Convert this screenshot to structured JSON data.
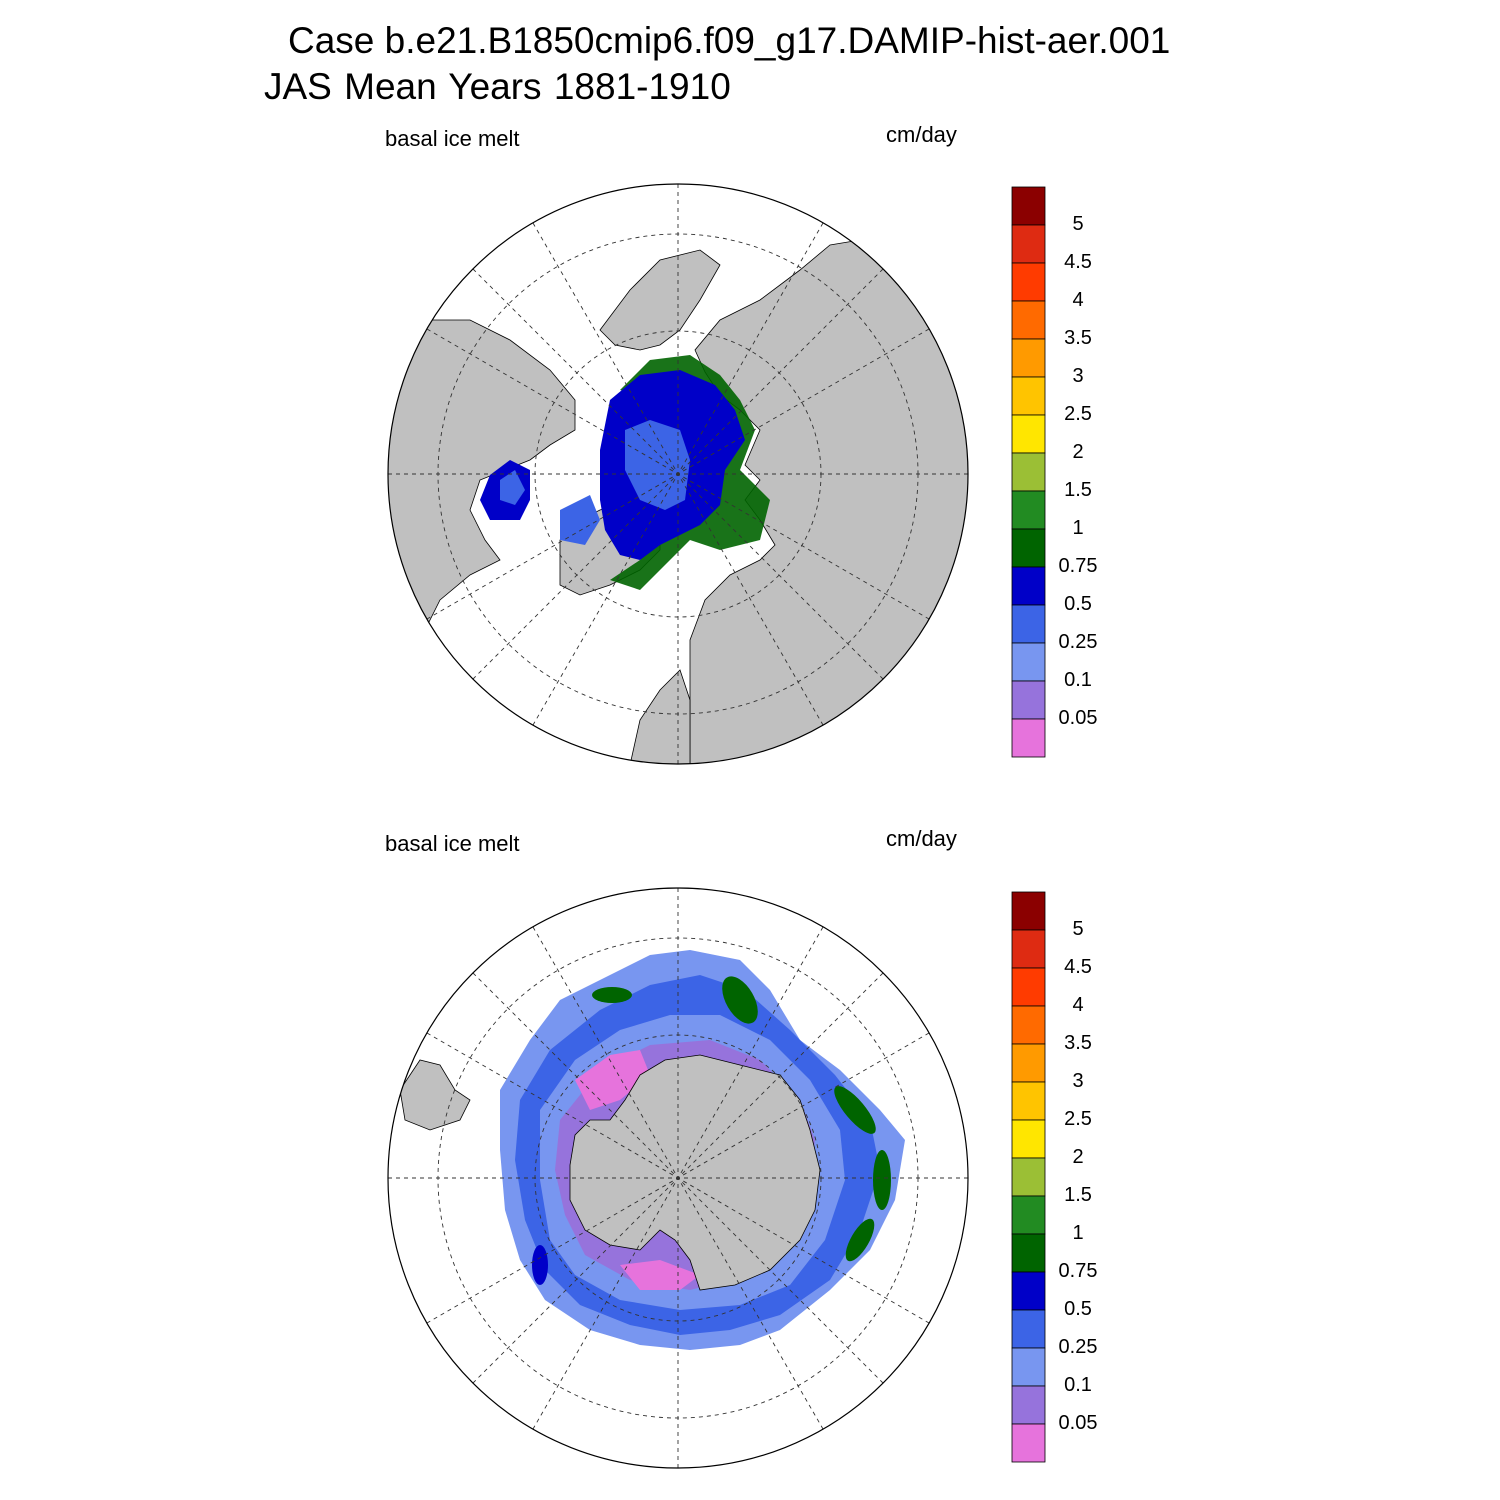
{
  "title": {
    "line1": "Case b.e21.B1850cmip6.f09_g17.DAMIP-hist-aer.001",
    "line2": "JAS Mean   Years 1881-1910"
  },
  "panels": [
    {
      "id": "north",
      "variable": "basal ice melt",
      "units": "cm/day"
    },
    {
      "id": "south",
      "variable": "basal ice melt",
      "units": "cm/day"
    }
  ],
  "colorbar": {
    "labels": [
      "5",
      "4.5",
      "4",
      "3.5",
      "3",
      "2.5",
      "2",
      "1.5",
      "1",
      "0.75",
      "0.5",
      "0.25",
      "0.1",
      "0.05"
    ],
    "colors": [
      "#8b0000",
      "#de2b12",
      "#ff3b00",
      "#ff6a00",
      "#ff9a00",
      "#ffc400",
      "#ffe600",
      "#9bbf35",
      "#228b22",
      "#006400",
      "#0000c8",
      "#3c64e6",
      "#7896f0",
      "#9673dc",
      "#e673dc"
    ]
  },
  "colors": {
    "land": "#c0c0c0",
    "ocean": "#ffffff"
  }
}
